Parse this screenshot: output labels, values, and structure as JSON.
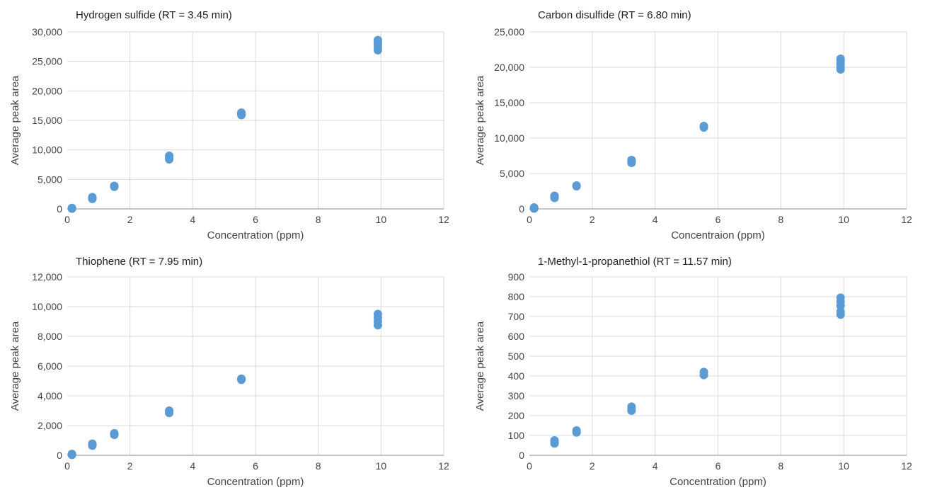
{
  "colors": {
    "marker": "#5b9bd5",
    "grid": "#d9d9d9",
    "axis": "#888888"
  },
  "chart_data": [
    {
      "type": "scatter",
      "title": "Hydrogen sulfide (RT = 3.45 min)",
      "xlabel": "Concentration (ppm)",
      "ylabel": "Average peak area",
      "xlim": [
        0,
        12
      ],
      "ylim": [
        0,
        30000
      ],
      "xticks": [
        "0",
        "2",
        "4",
        "6",
        "8",
        "10",
        "12"
      ],
      "yticks": [
        "0",
        "5,000",
        "10,000",
        "15,000",
        "20,000",
        "25,000",
        "30,000"
      ],
      "grid": true,
      "series": [
        {
          "x": [
            0.15,
            0.15,
            0.15,
            0.8,
            0.8,
            0.8,
            1.5,
            1.5,
            3.25,
            3.25,
            3.25,
            5.55,
            5.55,
            5.55,
            9.9,
            9.9,
            9.9,
            9.9,
            9.9
          ],
          "y": [
            50,
            100,
            150,
            1700,
            1850,
            2000,
            3750,
            3900,
            8400,
            8700,
            9000,
            15900,
            16100,
            16300,
            26900,
            27400,
            27900,
            28300,
            28600
          ]
        }
      ]
    },
    {
      "type": "scatter",
      "title": "Carbon disulfide (RT = 6.80 min)",
      "xlabel": "Concentraion (ppm)",
      "ylabel": "Average peak area",
      "xlim": [
        0,
        12
      ],
      "ylim": [
        0,
        25000
      ],
      "xticks": [
        "0",
        "2",
        "4",
        "6",
        "8",
        "10",
        "12"
      ],
      "yticks": [
        "0",
        "5,000",
        "10,000",
        "15,000",
        "20,000",
        "25,000"
      ],
      "grid": true,
      "series": [
        {
          "x": [
            0.15,
            0.15,
            0.15,
            0.8,
            0.8,
            0.8,
            1.5,
            1.5,
            3.25,
            3.25,
            3.25,
            5.55,
            5.55,
            9.9,
            9.9,
            9.9,
            9.9,
            9.9
          ],
          "y": [
            50,
            120,
            200,
            1550,
            1700,
            1850,
            3200,
            3300,
            6500,
            6700,
            6900,
            11500,
            11700,
            19700,
            20100,
            20500,
            20900,
            21200
          ]
        }
      ]
    },
    {
      "type": "scatter",
      "title": "Thiophene (RT = 7.95 min)",
      "xlabel": "Concentration (ppm)",
      "ylabel": "Average peak area",
      "xlim": [
        0,
        12
      ],
      "ylim": [
        0,
        12000
      ],
      "xticks": [
        "0",
        "2",
        "4",
        "6",
        "8",
        "10",
        "12"
      ],
      "yticks": [
        "0",
        "2,000",
        "4,000",
        "6,000",
        "8,000",
        "10,000",
        "12,000"
      ],
      "grid": true,
      "series": [
        {
          "x": [
            0.15,
            0.15,
            0.15,
            0.8,
            0.8,
            0.8,
            1.5,
            1.5,
            3.25,
            3.25,
            3.25,
            5.55,
            5.55,
            9.9,
            9.9,
            9.9,
            9.9
          ],
          "y": [
            30,
            60,
            90,
            650,
            720,
            780,
            1380,
            1480,
            2850,
            2950,
            3000,
            5080,
            5150,
            8750,
            9000,
            9250,
            9500
          ]
        }
      ]
    },
    {
      "type": "scatter",
      "title": "1-Methyl-1-propanethiol (RT = 11.57 min)",
      "xlabel": "Concentration (ppm)",
      "ylabel": "Average peak area",
      "xlim": [
        0,
        12
      ],
      "ylim": [
        0,
        900
      ],
      "xticks": [
        "0",
        "2",
        "4",
        "6",
        "8",
        "10",
        "12"
      ],
      "yticks": [
        "0",
        "100",
        "200",
        "300",
        "400",
        "500",
        "600",
        "700",
        "800",
        "900"
      ],
      "grid": true,
      "series": [
        {
          "x": [
            0.8,
            0.8,
            0.8,
            1.5,
            1.5,
            3.25,
            3.25,
            3.25,
            5.55,
            5.55,
            9.9,
            9.9,
            9.9,
            9.9,
            9.9
          ],
          "y": [
            60,
            68,
            75,
            115,
            125,
            225,
            235,
            245,
            405,
            420,
            710,
            725,
            755,
            775,
            795
          ]
        }
      ]
    }
  ]
}
